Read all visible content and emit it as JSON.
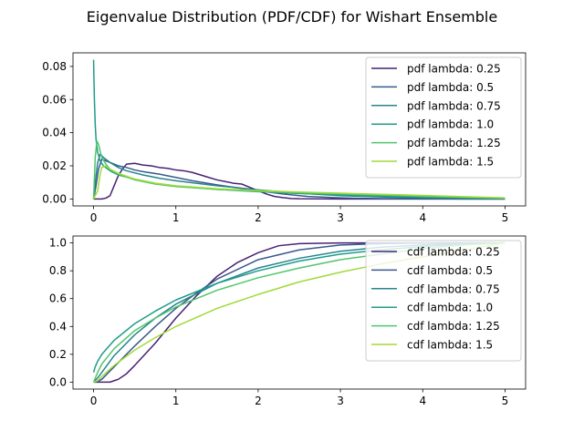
{
  "figure": {
    "title": "Eigenvalue Distribution (PDF/CDF) for Wishart Ensemble",
    "colors": [
      "#482173",
      "#38598c",
      "#25858e",
      "#1e9b8a",
      "#51c56a",
      "#a0da39"
    ]
  },
  "chart_data": [
    {
      "type": "line",
      "title": "",
      "xlabel": "",
      "ylabel": "",
      "xlim": [
        -0.25,
        5.25
      ],
      "ylim": [
        -0.0042,
        0.0882
      ],
      "xticks": [
        "0",
        "1",
        "2",
        "3",
        "4",
        "5"
      ],
      "yticks": [
        "0.00",
        "0.02",
        "0.04",
        "0.06",
        "0.08"
      ],
      "legend_position": "top-right",
      "grid": false,
      "series": [
        {
          "name": "pdf lambda: 0.25",
          "x": [
            0,
            0.1,
            0.15,
            0.2,
            0.25,
            0.3,
            0.35,
            0.4,
            0.5,
            0.6,
            0.7,
            0.8,
            0.9,
            1.0,
            1.1,
            1.2,
            1.3,
            1.4,
            1.5,
            1.6,
            1.7,
            1.8,
            1.9,
            2.0,
            2.1,
            2.2,
            2.3,
            2.4,
            2.5,
            3.0,
            3.5,
            4.0,
            4.5,
            5.0
          ],
          "y": [
            0.0,
            0.0,
            0.0005,
            0.002,
            0.008,
            0.014,
            0.018,
            0.021,
            0.0215,
            0.0205,
            0.02,
            0.019,
            0.0185,
            0.0175,
            0.017,
            0.016,
            0.0145,
            0.013,
            0.0115,
            0.0105,
            0.0095,
            0.009,
            0.007,
            0.005,
            0.003,
            0.0015,
            0.0008,
            0.0003,
            0.0001,
            0.0,
            0.0,
            0.0,
            0.0,
            0.0
          ]
        },
        {
          "name": "pdf lambda: 0.5",
          "x": [
            0,
            0.03,
            0.06,
            0.1,
            0.15,
            0.2,
            0.3,
            0.4,
            0.5,
            0.6,
            0.8,
            1.0,
            1.2,
            1.5,
            2.0,
            2.3,
            2.6,
            3.0,
            3.2,
            3.5,
            4.0,
            4.5,
            5.0
          ],
          "y": [
            0.0,
            0.008,
            0.018,
            0.024,
            0.023,
            0.022,
            0.02,
            0.019,
            0.0175,
            0.0165,
            0.015,
            0.013,
            0.011,
            0.0085,
            0.005,
            0.003,
            0.0015,
            0.0007,
            0.0004,
            0.0002,
            0.0001,
            0.0,
            0.0
          ]
        },
        {
          "name": "pdf lambda: 0.75",
          "x": [
            0,
            0.02,
            0.05,
            0.08,
            0.12,
            0.2,
            0.3,
            0.4,
            0.6,
            0.8,
            1.0,
            1.5,
            2.0,
            2.5,
            3.0,
            3.5,
            4.0,
            4.5,
            5.0
          ],
          "y": [
            0.0,
            0.01,
            0.022,
            0.027,
            0.025,
            0.022,
            0.019,
            0.017,
            0.0145,
            0.0125,
            0.011,
            0.008,
            0.0055,
            0.0035,
            0.002,
            0.0012,
            0.0006,
            0.0003,
            0.0001
          ]
        },
        {
          "name": "pdf lambda: 1.0",
          "x": [
            0,
            0.01,
            0.02,
            0.03,
            0.05,
            0.08,
            0.12,
            0.2,
            0.3,
            0.5,
            0.75,
            1.0,
            1.5,
            2.0,
            2.5,
            3.0,
            3.5,
            4.0,
            4.5,
            5.0
          ],
          "y": [
            0.084,
            0.06,
            0.045,
            0.036,
            0.028,
            0.023,
            0.02,
            0.017,
            0.0145,
            0.012,
            0.0095,
            0.0078,
            0.0058,
            0.0044,
            0.0033,
            0.0025,
            0.0018,
            0.0012,
            0.0007,
            0.0003
          ]
        },
        {
          "name": "pdf lambda: 1.25",
          "x": [
            0,
            0.02,
            0.04,
            0.06,
            0.1,
            0.15,
            0.2,
            0.3,
            0.5,
            0.75,
            1.0,
            1.5,
            2.0,
            2.5,
            3.0,
            3.5,
            4.0,
            4.5,
            5.0
          ],
          "y": [
            0.0,
            0.025,
            0.035,
            0.033,
            0.025,
            0.021,
            0.018,
            0.015,
            0.0115,
            0.009,
            0.0075,
            0.0058,
            0.0047,
            0.0038,
            0.003,
            0.0023,
            0.0016,
            0.001,
            0.0005
          ]
        },
        {
          "name": "pdf lambda: 1.5",
          "x": [
            0,
            0.05,
            0.08,
            0.1,
            0.15,
            0.2,
            0.3,
            0.5,
            0.75,
            1.0,
            1.5,
            2.0,
            2.5,
            3.0,
            3.5,
            4.0,
            4.5,
            5.0
          ],
          "y": [
            0.0,
            0.005,
            0.015,
            0.019,
            0.02,
            0.018,
            0.0155,
            0.012,
            0.0095,
            0.008,
            0.0062,
            0.005,
            0.0042,
            0.0035,
            0.0028,
            0.0021,
            0.0014,
            0.0007
          ]
        }
      ]
    },
    {
      "type": "line",
      "title": "",
      "xlabel": "",
      "ylabel": "",
      "xlim": [
        -0.25,
        5.25
      ],
      "ylim": [
        -0.05,
        1.05
      ],
      "xticks": [
        "0",
        "1",
        "2",
        "3",
        "4",
        "5"
      ],
      "yticks": [
        "0.0",
        "0.2",
        "0.4",
        "0.6",
        "0.8",
        "1.0"
      ],
      "legend_position": "right",
      "grid": false,
      "series": [
        {
          "name": "cdf lambda: 0.25",
          "x": [
            0,
            0.2,
            0.3,
            0.4,
            0.5,
            0.75,
            1.0,
            1.25,
            1.5,
            1.75,
            2.0,
            2.25,
            2.5,
            3.0,
            5.0
          ],
          "y": [
            0.0,
            0.0,
            0.02,
            0.06,
            0.12,
            0.28,
            0.46,
            0.62,
            0.76,
            0.86,
            0.93,
            0.98,
            0.995,
            1.0,
            1.0
          ]
        },
        {
          "name": "cdf lambda: 0.5",
          "x": [
            0,
            0.05,
            0.1,
            0.25,
            0.5,
            0.75,
            1.0,
            1.25,
            1.5,
            2.0,
            2.5,
            3.0,
            3.5,
            4.0,
            5.0
          ],
          "y": [
            0.0,
            0.005,
            0.02,
            0.11,
            0.26,
            0.4,
            0.53,
            0.64,
            0.74,
            0.88,
            0.95,
            0.985,
            0.995,
            1.0,
            1.0
          ]
        },
        {
          "name": "cdf lambda: 0.75",
          "x": [
            0,
            0.05,
            0.1,
            0.25,
            0.5,
            0.75,
            1.0,
            1.5,
            2.0,
            2.5,
            3.0,
            3.5,
            4.0,
            4.5,
            5.0
          ],
          "y": [
            0.0,
            0.03,
            0.07,
            0.19,
            0.34,
            0.46,
            0.56,
            0.71,
            0.82,
            0.89,
            0.94,
            0.97,
            0.985,
            0.995,
            1.0
          ]
        },
        {
          "name": "cdf lambda: 1.0",
          "x": [
            0,
            0.02,
            0.05,
            0.1,
            0.25,
            0.5,
            0.75,
            1.0,
            1.5,
            2.0,
            2.5,
            3.0,
            3.5,
            4.0,
            4.5,
            5.0
          ],
          "y": [
            0.07,
            0.11,
            0.15,
            0.2,
            0.3,
            0.42,
            0.51,
            0.59,
            0.71,
            0.8,
            0.87,
            0.92,
            0.95,
            0.975,
            0.99,
            1.0
          ]
        },
        {
          "name": "cdf lambda: 1.25",
          "x": [
            0,
            0.05,
            0.1,
            0.25,
            0.5,
            0.75,
            1.0,
            1.5,
            2.0,
            2.5,
            3.0,
            3.5,
            4.0,
            4.5,
            5.0
          ],
          "y": [
            0.0,
            0.07,
            0.13,
            0.24,
            0.37,
            0.46,
            0.54,
            0.66,
            0.75,
            0.82,
            0.88,
            0.92,
            0.96,
            0.985,
            1.0
          ]
        },
        {
          "name": "cdf lambda: 1.5",
          "x": [
            0,
            0.05,
            0.1,
            0.25,
            0.5,
            0.75,
            1.0,
            1.5,
            2.0,
            2.5,
            3.0,
            3.5,
            4.0,
            4.5,
            5.0
          ],
          "y": [
            0.0,
            0.01,
            0.04,
            0.12,
            0.23,
            0.32,
            0.4,
            0.53,
            0.63,
            0.72,
            0.79,
            0.85,
            0.9,
            0.95,
            1.0
          ]
        }
      ]
    }
  ]
}
